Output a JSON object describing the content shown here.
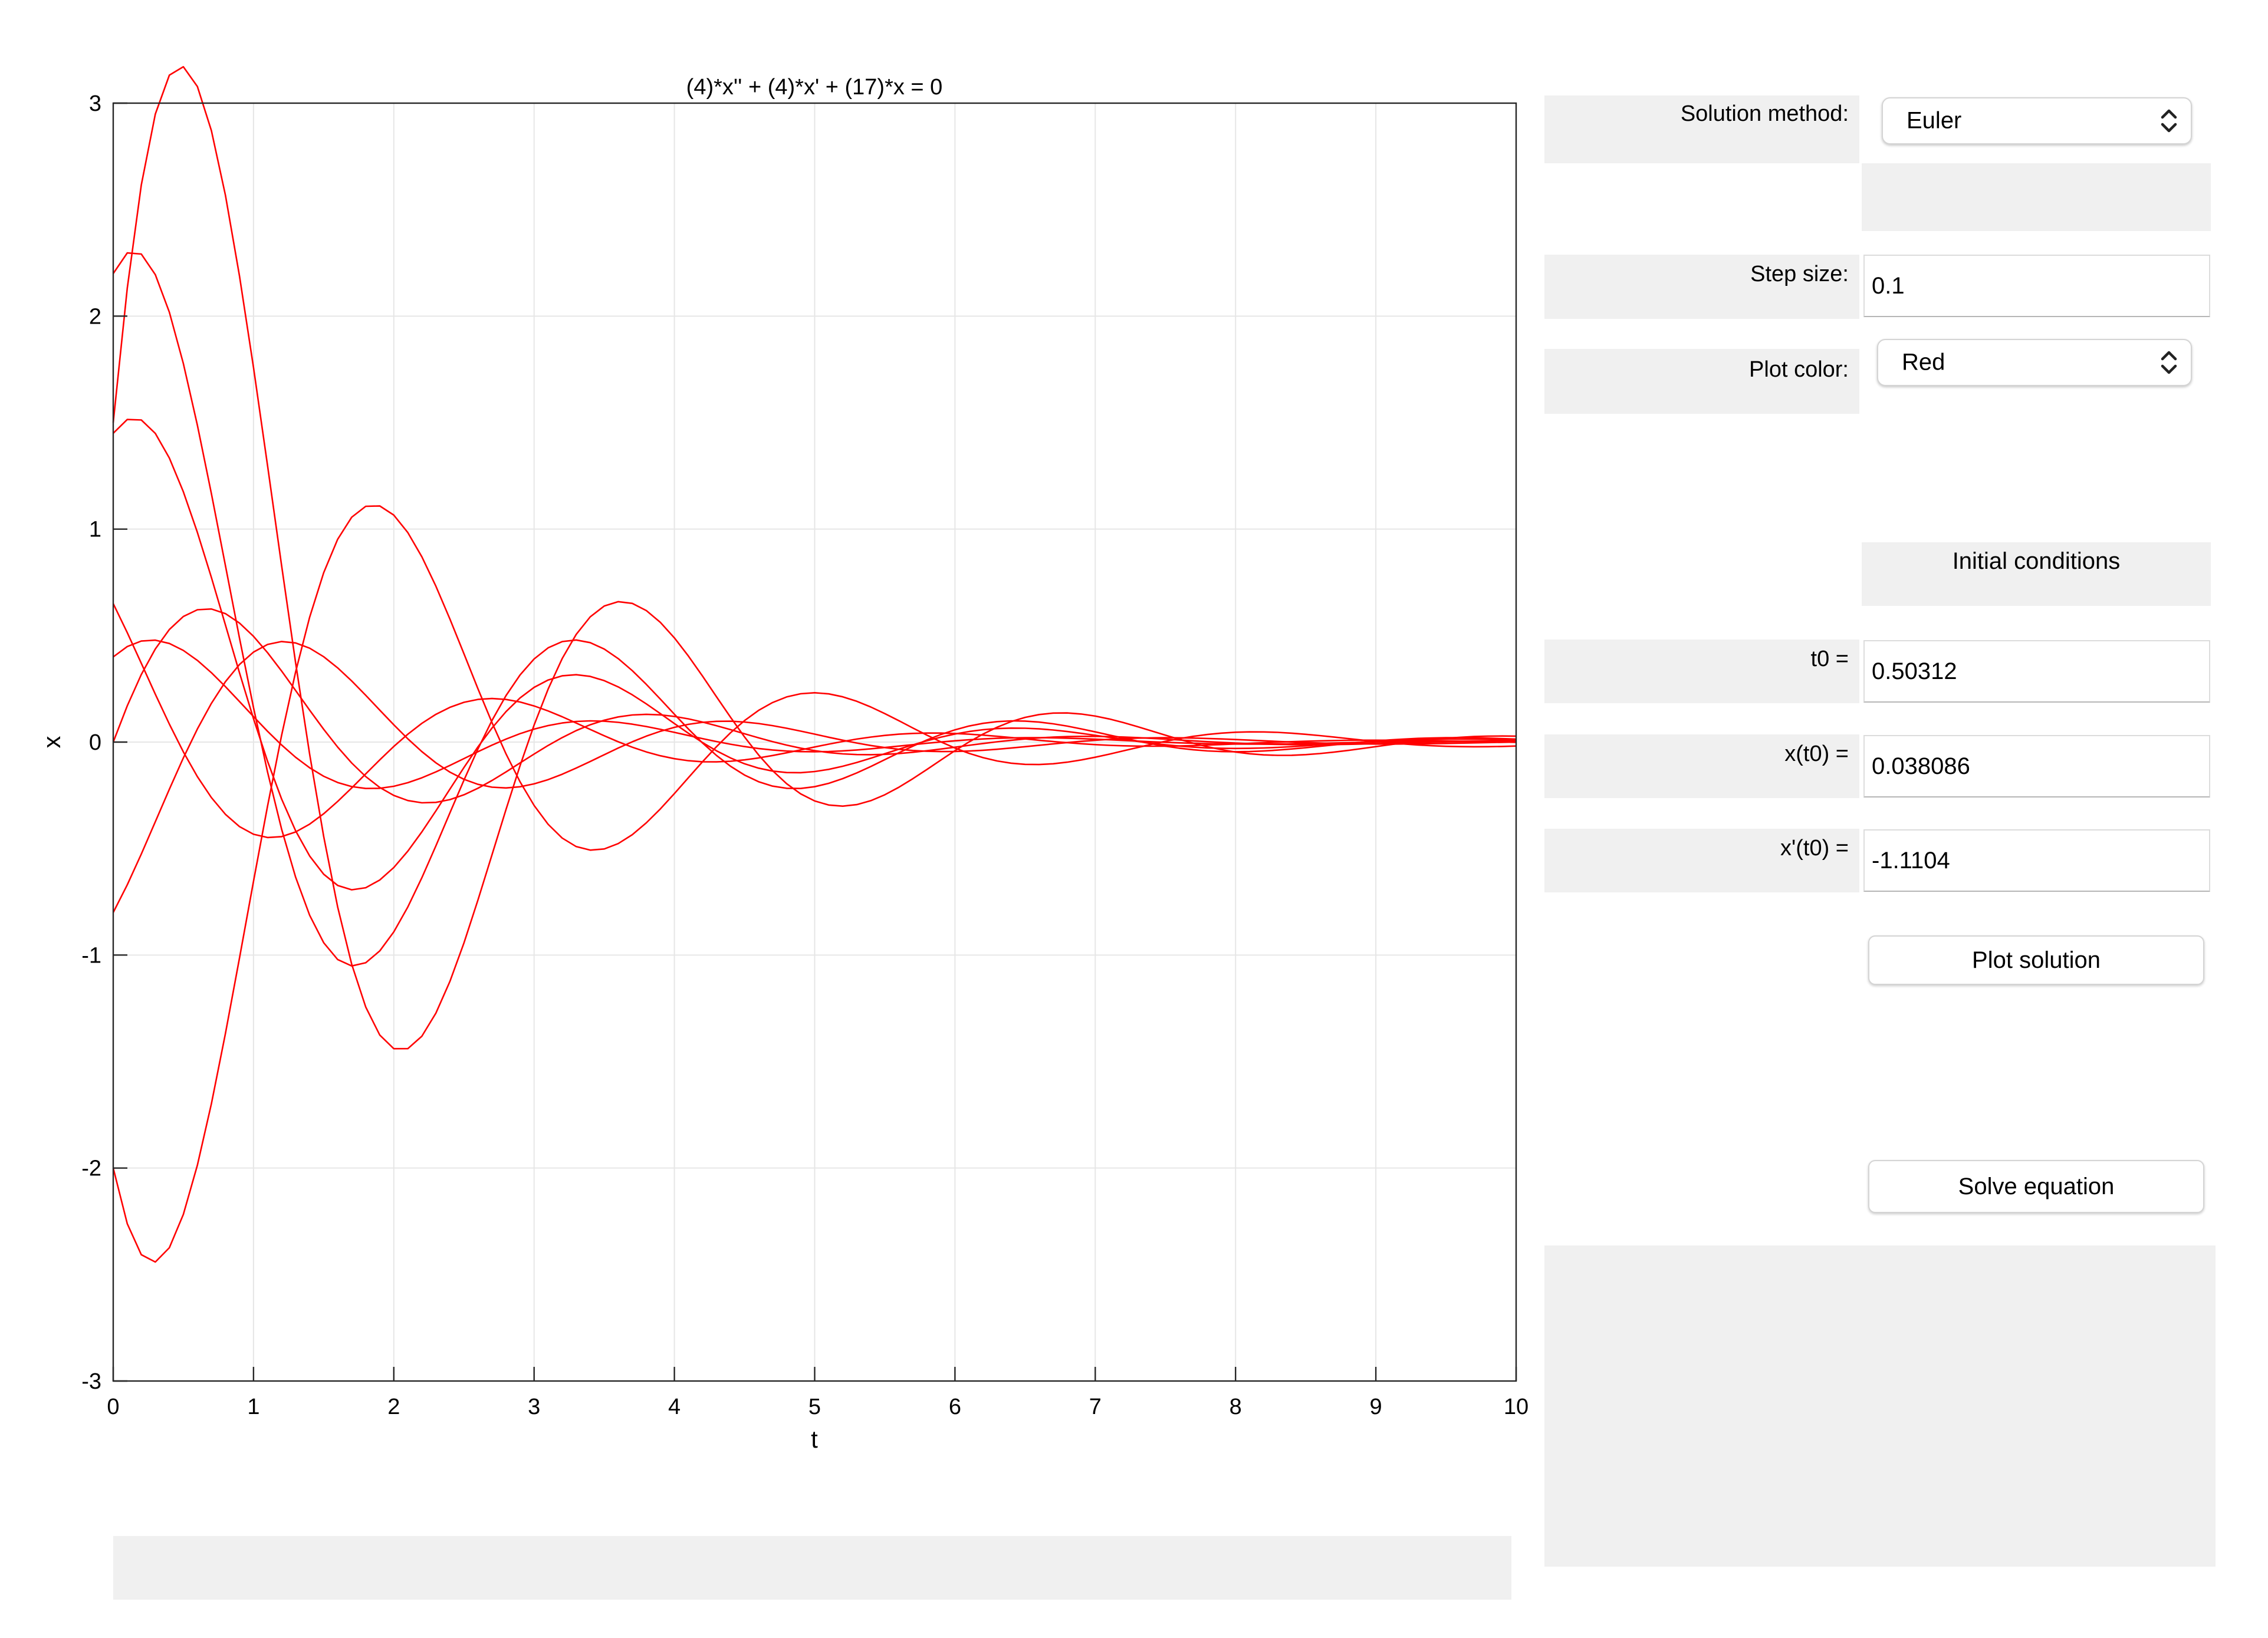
{
  "plot": {
    "title": "(4)*x'' + (4)*x' + (17)*x = 0",
    "xlabel": "t",
    "ylabel": "x"
  },
  "controls": {
    "solution_method_label": "Solution method:",
    "solution_method_value": "Euler",
    "step_size_label": "Step size:",
    "step_size_value": "0.1",
    "plot_color_label": "Plot color:",
    "plot_color_value": "Red",
    "initial_conditions_label": "Initial conditions",
    "t0_label": "t0 =",
    "t0_value": "0.50312",
    "xt0_label": "x(t0) =",
    "xt0_value": "0.038086",
    "dxt0_label": "x'(t0) =",
    "dxt0_value": "-1.1104",
    "plot_solution_button": "Plot solution",
    "solve_equation_button": "Solve equation",
    "chevron_icon": "up-down-chevron-icon"
  },
  "chart_data": {
    "type": "line",
    "title": "(4)*x'' + (4)*x' + (17)*x = 0",
    "xlabel": "t",
    "ylabel": "x",
    "xlim": [
      0,
      10
    ],
    "ylim": [
      -3,
      3
    ],
    "xticks": [
      "0",
      "1",
      "2",
      "3",
      "4",
      "5",
      "6",
      "7",
      "8",
      "9",
      "10"
    ],
    "yticks": [
      "-3",
      "-2",
      "-1",
      "0",
      "1",
      "2",
      "3"
    ],
    "grid": true,
    "color": "#ff0000",
    "step": 0.1,
    "series": [
      {
        "x0": 2.2,
        "v0": 1.5
      },
      {
        "x0": 1.5,
        "v0": 7.0
      },
      {
        "x0": 1.45,
        "v0": 1.0
      },
      {
        "x0": 0.65,
        "v0": -1.3
      },
      {
        "x0": 0.0,
        "v0": 1.8
      },
      {
        "x0": -0.8,
        "v0": 1.2
      },
      {
        "x0": -2.0,
        "v0": -3.2
      },
      {
        "x0": 0.4,
        "v0": 0.6
      }
    ]
  }
}
